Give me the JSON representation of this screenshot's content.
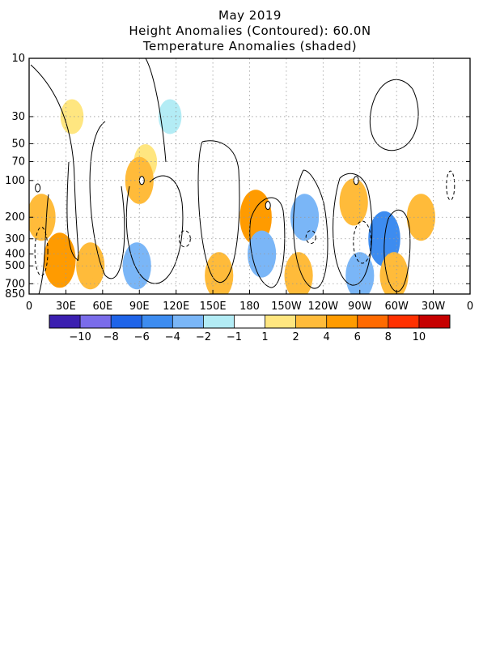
{
  "header": {
    "title": "May 2019",
    "subtitle_1": "Height Anomalies (Contoured): 60.0N",
    "subtitle_2": "Temperature Anomalies (shaded)"
  },
  "chart_data": {
    "type": "heatmap",
    "title": "May 2019",
    "subtitle": [
      "Height Anomalies (Contoured): 60.0N",
      "Temperature Anomalies (shaded)"
    ],
    "x_axis": {
      "range_deg_east": [
        0,
        360
      ],
      "ticks": [
        {
          "deg": 0,
          "label": "0"
        },
        {
          "deg": 30,
          "label": "30E"
        },
        {
          "deg": 60,
          "label": "60E"
        },
        {
          "deg": 90,
          "label": "90E"
        },
        {
          "deg": 120,
          "label": "120E"
        },
        {
          "deg": 150,
          "label": "150E"
        },
        {
          "deg": 180,
          "label": "180"
        },
        {
          "deg": 210,
          "label": "150W"
        },
        {
          "deg": 240,
          "label": "120W"
        },
        {
          "deg": 270,
          "label": "90W"
        },
        {
          "deg": 300,
          "label": "60W"
        },
        {
          "deg": 330,
          "label": "30W"
        },
        {
          "deg": 360,
          "label": "0"
        }
      ]
    },
    "y_axis": {
      "scale": "log",
      "inverted": true,
      "range_hpa": [
        850,
        10
      ],
      "ticks": [
        10,
        30,
        50,
        70,
        100,
        200,
        300,
        400,
        500,
        700,
        850
      ]
    },
    "grid": true,
    "colorbar": {
      "colors": [
        "#3b1fb0",
        "#7a6cea",
        "#1f64e8",
        "#3d8cf0",
        "#7ab6f7",
        "#b3ecf5",
        "#ffffff",
        "#ffe680",
        "#ffbb3a",
        "#ff9b00",
        "#ff6a00",
        "#ff3000",
        "#c60000"
      ],
      "labels": [
        "−10",
        "−8",
        "−6",
        "−4",
        "−2",
        "−1",
        "1",
        "2",
        "4",
        "6",
        "8",
        "10"
      ]
    },
    "shaded_regions": [
      {
        "lon": 10,
        "p": 200,
        "temp_anom": 3
      },
      {
        "lon": 25,
        "p": 450,
        "temp_anom": 4
      },
      {
        "lon": 50,
        "p": 500,
        "temp_anom": 3
      },
      {
        "lon": 35,
        "p": 30,
        "temp_anom": 1.5
      },
      {
        "lon": 95,
        "p": 70,
        "temp_anom": 1.5
      },
      {
        "lon": 90,
        "p": 100,
        "temp_anom": 3
      },
      {
        "lon": 88,
        "p": 500,
        "temp_anom": -3
      },
      {
        "lon": 115,
        "p": 30,
        "temp_anom": -1.5
      },
      {
        "lon": 155,
        "p": 600,
        "temp_anom": 3
      },
      {
        "lon": 185,
        "p": 200,
        "temp_anom": 4
      },
      {
        "lon": 190,
        "p": 400,
        "temp_anom": -3
      },
      {
        "lon": 225,
        "p": 200,
        "temp_anom": -3
      },
      {
        "lon": 220,
        "p": 600,
        "temp_anom": 3
      },
      {
        "lon": 265,
        "p": 150,
        "temp_anom": 3
      },
      {
        "lon": 270,
        "p": 600,
        "temp_anom": -3
      },
      {
        "lon": 290,
        "p": 300,
        "temp_anom": -4
      },
      {
        "lon": 298,
        "p": 600,
        "temp_anom": 3
      },
      {
        "lon": 320,
        "p": 200,
        "temp_anom": 3
      }
    ]
  }
}
